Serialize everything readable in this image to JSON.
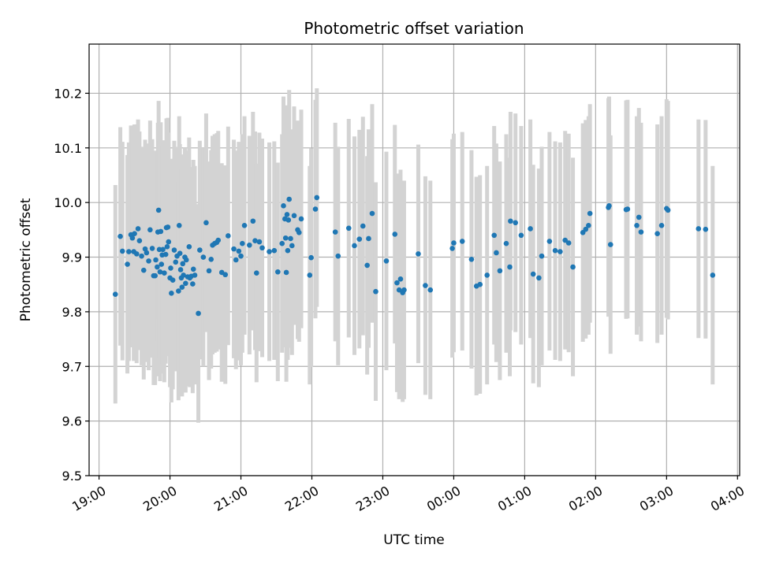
{
  "chart_data": {
    "type": "scatter",
    "title": "Photometric offset variation",
    "xlabel": "UTC time",
    "ylabel": "Photometric offset",
    "x_unit": "hours (UTC, continuing past midnight)",
    "xlim": [
      18.86,
      28.03
    ],
    "ylim": [
      9.5,
      10.29
    ],
    "x_ticks": [
      19,
      20,
      21,
      22,
      23,
      24,
      25,
      26,
      27,
      28
    ],
    "x_tick_labels": [
      "19:00",
      "20:00",
      "21:00",
      "22:00",
      "23:00",
      "00:00",
      "01:00",
      "02:00",
      "03:00",
      "04:00"
    ],
    "y_ticks": [
      9.5,
      9.6,
      9.7,
      9.8,
      9.9,
      10.0,
      10.1,
      10.2
    ],
    "y_tick_labels": [
      "9.5",
      "9.6",
      "9.7",
      "9.8",
      "9.9",
      "10.0",
      "10.1",
      "10.2"
    ],
    "grid": true,
    "colors": {
      "point": "#1f77b4",
      "errorbar": "#d3d3d3",
      "grid": "#b0b0b0"
    },
    "series": [
      {
        "marker": "point-with-errorbar",
        "error": 0.2,
        "points": [
          [
            19.23,
            9.832
          ],
          [
            19.3,
            9.938
          ],
          [
            19.33,
            9.911
          ],
          [
            19.4,
            9.887
          ],
          [
            19.42,
            9.91
          ],
          [
            19.45,
            9.941
          ],
          [
            19.47,
            9.935
          ],
          [
            19.49,
            9.91
          ],
          [
            19.5,
            9.943
          ],
          [
            19.53,
            9.906
          ],
          [
            19.55,
            9.952
          ],
          [
            19.57,
            9.93
          ],
          [
            19.6,
            9.902
          ],
          [
            19.63,
            9.876
          ],
          [
            19.65,
            9.915
          ],
          [
            19.67,
            9.908
          ],
          [
            19.7,
            9.893
          ],
          [
            19.72,
            9.95
          ],
          [
            19.75,
            9.916
          ],
          [
            19.77,
            9.866
          ],
          [
            19.79,
            9.866
          ],
          [
            19.8,
            9.895
          ],
          [
            19.82,
            9.882
          ],
          [
            19.83,
            9.946
          ],
          [
            19.84,
            9.986
          ],
          [
            19.85,
            9.914
          ],
          [
            19.86,
            9.873
          ],
          [
            19.87,
            9.947
          ],
          [
            19.88,
            9.887
          ],
          [
            19.89,
            9.904
          ],
          [
            19.9,
            9.914
          ],
          [
            19.92,
            9.871
          ],
          [
            19.94,
            9.905
          ],
          [
            19.95,
            9.954
          ],
          [
            19.96,
            9.919
          ],
          [
            19.97,
            9.955
          ],
          [
            19.98,
            9.928
          ],
          [
            20.0,
            9.862
          ],
          [
            20.01,
            9.88
          ],
          [
            20.02,
            9.834
          ],
          [
            20.04,
            9.858
          ],
          [
            20.06,
            9.913
          ],
          [
            20.08,
            9.891
          ],
          [
            20.1,
            9.902
          ],
          [
            20.12,
            9.838
          ],
          [
            20.13,
            9.958
          ],
          [
            20.14,
            9.907
          ],
          [
            20.15,
            9.877
          ],
          [
            20.16,
            9.862
          ],
          [
            20.17,
            9.845
          ],
          [
            20.18,
            9.888
          ],
          [
            20.19,
            9.867
          ],
          [
            20.21,
            9.9
          ],
          [
            20.22,
            9.852
          ],
          [
            20.23,
            9.895
          ],
          [
            20.25,
            9.864
          ],
          [
            20.27,
            9.919
          ],
          [
            20.28,
            9.862
          ],
          [
            20.3,
            9.865
          ],
          [
            20.32,
            9.851
          ],
          [
            20.33,
            9.878
          ],
          [
            20.35,
            9.867
          ],
          [
            20.4,
            9.797
          ],
          [
            20.42,
            9.913
          ],
          [
            20.47,
            9.9
          ],
          [
            20.51,
            9.963
          ],
          [
            20.55,
            9.875
          ],
          [
            20.58,
            9.896
          ],
          [
            20.6,
            9.922
          ],
          [
            20.63,
            9.925
          ],
          [
            20.66,
            9.927
          ],
          [
            20.68,
            9.931
          ],
          [
            20.73,
            9.872
          ],
          [
            20.78,
            9.868
          ],
          [
            20.82,
            9.939
          ],
          [
            20.9,
            9.915
          ],
          [
            20.93,
            9.895
          ],
          [
            20.97,
            9.911
          ],
          [
            21.0,
            9.902
          ],
          [
            21.02,
            9.925
          ],
          [
            21.05,
            9.958
          ],
          [
            21.12,
            9.922
          ],
          [
            21.17,
            9.966
          ],
          [
            21.2,
            9.93
          ],
          [
            21.22,
            9.871
          ],
          [
            21.26,
            9.928
          ],
          [
            21.3,
            9.917
          ],
          [
            21.4,
            9.91
          ],
          [
            21.47,
            9.912
          ],
          [
            21.52,
            9.873
          ],
          [
            21.58,
            9.925
          ],
          [
            21.6,
            9.994
          ],
          [
            21.62,
            9.97
          ],
          [
            21.63,
            9.935
          ],
          [
            21.64,
            9.872
          ],
          [
            21.65,
            9.978
          ],
          [
            21.66,
            9.912
          ],
          [
            21.67,
            9.968
          ],
          [
            21.68,
            10.006
          ],
          [
            21.7,
            9.934
          ],
          [
            21.72,
            9.921
          ],
          [
            21.75,
            9.976
          ],
          [
            21.8,
            9.95
          ],
          [
            21.82,
            9.945
          ],
          [
            21.85,
            9.97
          ],
          [
            21.97,
            9.867
          ],
          [
            21.99,
            9.899
          ],
          [
            22.05,
            9.988
          ],
          [
            22.07,
            10.009
          ],
          [
            22.33,
            9.946
          ],
          [
            22.37,
            9.902
          ],
          [
            22.52,
            9.953
          ],
          [
            22.6,
            9.921
          ],
          [
            22.67,
            9.933
          ],
          [
            22.72,
            9.957
          ],
          [
            22.78,
            9.885
          ],
          [
            22.8,
            9.934
          ],
          [
            22.85,
            9.98
          ],
          [
            22.9,
            9.837
          ],
          [
            23.05,
            9.893
          ],
          [
            23.17,
            9.942
          ],
          [
            23.2,
            9.853
          ],
          [
            23.23,
            9.84
          ],
          [
            23.25,
            9.86
          ],
          [
            23.28,
            9.835
          ],
          [
            23.3,
            9.84
          ],
          [
            23.5,
            9.906
          ],
          [
            23.6,
            9.848
          ],
          [
            23.67,
            9.84
          ],
          [
            23.98,
            9.916
          ],
          [
            24.0,
            9.926
          ],
          [
            24.12,
            9.929
          ],
          [
            24.25,
            9.896
          ],
          [
            24.32,
            9.847
          ],
          [
            24.37,
            9.85
          ],
          [
            24.47,
            9.867
          ],
          [
            24.57,
            9.94
          ],
          [
            24.6,
            9.908
          ],
          [
            24.65,
            9.875
          ],
          [
            24.74,
            9.925
          ],
          [
            24.79,
            9.882
          ],
          [
            24.8,
            9.966
          ],
          [
            24.87,
            9.963
          ],
          [
            24.95,
            9.94
          ],
          [
            25.08,
            9.952
          ],
          [
            25.12,
            9.869
          ],
          [
            25.2,
            9.862
          ],
          [
            25.24,
            9.902
          ],
          [
            25.35,
            9.929
          ],
          [
            25.43,
            9.912
          ],
          [
            25.5,
            9.91
          ],
          [
            25.57,
            9.931
          ],
          [
            25.62,
            9.926
          ],
          [
            25.68,
            9.882
          ],
          [
            25.82,
            9.945
          ],
          [
            25.86,
            9.951
          ],
          [
            25.9,
            9.958
          ],
          [
            25.92,
            9.98
          ],
          [
            26.18,
            9.991
          ],
          [
            26.19,
            9.994
          ],
          [
            26.21,
            9.923
          ],
          [
            26.43,
            9.987
          ],
          [
            26.45,
            9.988
          ],
          [
            26.58,
            9.958
          ],
          [
            26.61,
            9.973
          ],
          [
            26.64,
            9.946
          ],
          [
            26.87,
            9.943
          ],
          [
            26.93,
            9.958
          ],
          [
            27.0,
            9.989
          ],
          [
            27.02,
            9.986
          ],
          [
            27.45,
            9.952
          ],
          [
            27.55,
            9.951
          ],
          [
            27.65,
            9.867
          ]
        ]
      }
    ]
  }
}
